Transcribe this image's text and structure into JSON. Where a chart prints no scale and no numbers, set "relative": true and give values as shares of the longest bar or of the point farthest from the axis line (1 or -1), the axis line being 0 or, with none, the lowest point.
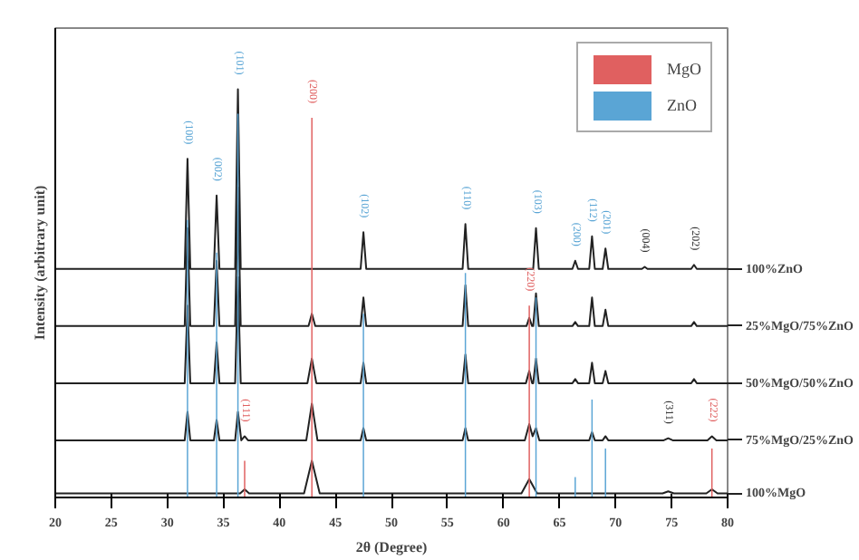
{
  "chart_data": {
    "type": "line",
    "relative": true,
    "xlabel": "2θ (Degree)",
    "ylabel": "Intensity (arbitrary unit)",
    "xlim": [
      20,
      80
    ],
    "xticks": [
      20,
      25,
      30,
      35,
      40,
      45,
      50,
      55,
      60,
      65,
      70,
      75,
      80
    ],
    "grid": false,
    "legend": "top right",
    "marker": "none",
    "line_style": "solid",
    "series": [
      {
        "name": "100%ZnO",
        "color": "#222222",
        "x": [
          20,
          31.55,
          31.8,
          32.05,
          34.15,
          34.4,
          34.65,
          36.05,
          36.3,
          36.55,
          47.25,
          47.5,
          47.75,
          56.35,
          56.6,
          56.85,
          62.65,
          62.9,
          63.15,
          66.15,
          66.4,
          66.65,
          67.65,
          67.9,
          68.15,
          68.85,
          69.1,
          69.35,
          72.35,
          72.6,
          72.85,
          76.75,
          77,
          77.25,
          80
        ],
        "values": [
          0.56,
          0.56,
          0.83,
          0.56,
          0.56,
          0.74,
          0.56,
          0.56,
          1.0,
          0.56,
          0.56,
          0.65,
          0.56,
          0.56,
          0.67,
          0.56,
          0.56,
          0.66,
          0.56,
          0.56,
          0.58,
          0.56,
          0.56,
          0.64,
          0.56,
          0.56,
          0.61,
          0.56,
          0.56,
          0.565,
          0.56,
          0.56,
          0.57,
          0.56,
          0.56
        ]
      },
      {
        "name": "25%MgO/75%ZnO",
        "color": "#222222",
        "x": [
          20,
          31.55,
          31.8,
          32.05,
          34.15,
          34.4,
          34.65,
          36.05,
          36.3,
          36.55,
          42.6,
          42.9,
          43.2,
          47.25,
          47.5,
          47.75,
          56.35,
          56.6,
          56.85,
          62.05,
          62.3,
          62.55,
          62.65,
          62.9,
          63.15,
          66.15,
          66.4,
          66.65,
          67.65,
          67.9,
          68.15,
          68.85,
          69.1,
          69.35,
          76.75,
          77,
          77.25,
          80
        ],
        "values": [
          0.42,
          0.42,
          0.66,
          0.42,
          0.42,
          0.58,
          0.42,
          0.42,
          0.76,
          0.42,
          0.42,
          0.45,
          0.42,
          0.42,
          0.49,
          0.42,
          0.42,
          0.52,
          0.42,
          0.42,
          0.44,
          0.42,
          0.42,
          0.5,
          0.42,
          0.42,
          0.43,
          0.42,
          0.42,
          0.49,
          0.42,
          0.42,
          0.46,
          0.42,
          0.42,
          0.43,
          0.42,
          0.42
        ]
      },
      {
        "name": "50%MgO/50%ZnO",
        "color": "#222222",
        "x": [
          20,
          31.55,
          31.8,
          32.05,
          34.15,
          34.4,
          34.65,
          36.05,
          36.3,
          36.55,
          42.5,
          42.9,
          43.3,
          47.25,
          47.5,
          47.75,
          56.35,
          56.6,
          56.85,
          62.0,
          62.3,
          62.55,
          62.65,
          62.9,
          63.15,
          66.15,
          66.4,
          66.65,
          67.65,
          67.9,
          68.15,
          68.85,
          69.1,
          69.35,
          76.75,
          77,
          77.25,
          80
        ],
        "values": [
          0.28,
          0.28,
          0.47,
          0.28,
          0.28,
          0.38,
          0.28,
          0.28,
          0.54,
          0.28,
          0.28,
          0.34,
          0.28,
          0.28,
          0.33,
          0.28,
          0.28,
          0.35,
          0.28,
          0.28,
          0.31,
          0.28,
          0.28,
          0.34,
          0.28,
          0.28,
          0.29,
          0.28,
          0.28,
          0.33,
          0.28,
          0.28,
          0.31,
          0.28,
          0.28,
          0.29,
          0.28,
          0.28
        ]
      },
      {
        "name": "75%MgO/25%ZnO",
        "color": "#222222",
        "x": [
          20,
          31.55,
          31.8,
          32.05,
          34.15,
          34.4,
          34.65,
          36.05,
          36.3,
          36.6,
          36.9,
          37.2,
          42.4,
          42.9,
          43.4,
          47.25,
          47.5,
          47.75,
          56.35,
          56.6,
          56.85,
          61.9,
          62.3,
          62.6,
          62.9,
          63.2,
          67.65,
          67.9,
          68.15,
          68.85,
          69.1,
          69.35,
          74.3,
          74.7,
          75.1,
          78.2,
          78.6,
          79.0,
          80
        ],
        "values": [
          0.14,
          0.14,
          0.21,
          0.14,
          0.14,
          0.19,
          0.14,
          0.14,
          0.21,
          0.14,
          0.15,
          0.14,
          0.14,
          0.23,
          0.14,
          0.14,
          0.17,
          0.14,
          0.14,
          0.17,
          0.14,
          0.14,
          0.18,
          0.15,
          0.17,
          0.14,
          0.14,
          0.16,
          0.14,
          0.14,
          0.15,
          0.14,
          0.14,
          0.145,
          0.14,
          0.14,
          0.15,
          0.14,
          0.14
        ]
      },
      {
        "name": "100%MgO",
        "color": "#222222",
        "x": [
          20,
          36.5,
          36.9,
          37.3,
          42.2,
          42.9,
          43.6,
          61.6,
          62.3,
          63.0,
          74.2,
          74.7,
          75.2,
          78.1,
          78.6,
          79.1,
          80
        ],
        "values": [
          0.01,
          0.01,
          0.02,
          0.01,
          0.01,
          0.09,
          0.01,
          0.01,
          0.045,
          0.01,
          0.01,
          0.015,
          0.01,
          0.01,
          0.02,
          0.01,
          0.01
        ]
      },
      {
        "name": "MgO",
        "type": "bar",
        "color": "#e06060",
        "x": [
          36.9,
          42.9,
          62.3,
          78.6
        ],
        "values": [
          0.09,
          0.93,
          0.47,
          0.12
        ]
      },
      {
        "name": "ZnO",
        "type": "bar",
        "color": "#5aa5d5",
        "x": [
          31.8,
          34.4,
          36.3,
          47.5,
          56.6,
          62.9,
          66.4,
          67.9,
          69.1
        ],
        "values": [
          0.68,
          0.6,
          0.94,
          0.45,
          0.55,
          0.49,
          0.05,
          0.24,
          0.12
        ]
      }
    ],
    "annotations": [
      {
        "text": "(100)",
        "x": 31.8,
        "y": 0.83
      },
      {
        "text": "(002)",
        "x": 34.4,
        "y": 0.74
      },
      {
        "text": "(101)",
        "x": 36.3,
        "y": 1.0
      },
      {
        "text": "(200)",
        "x": 42.9,
        "y": 0.93
      },
      {
        "text": "(102)",
        "x": 47.5,
        "y": 0.65
      },
      {
        "text": "(110)",
        "x": 56.6,
        "y": 0.67
      },
      {
        "text": "(103)",
        "x": 62.9,
        "y": 0.66
      },
      {
        "text": "(200)",
        "x": 66.4,
        "y": 0.58
      },
      {
        "text": "(112)",
        "x": 67.9,
        "y": 0.64
      },
      {
        "text": "(201)",
        "x": 69.1,
        "y": 0.61
      },
      {
        "text": "(004)",
        "x": 72.6,
        "y": 0.565
      },
      {
        "text": "(202)",
        "x": 77,
        "y": 0.57
      },
      {
        "text": "(220)",
        "x": 62.3,
        "y": 0.47
      },
      {
        "text": "(111)",
        "x": 36.9,
        "y": 0.15
      },
      {
        "text": "(311)",
        "x": 74.7,
        "y": 0.145
      },
      {
        "text": "(222)",
        "x": 78.6,
        "y": 0.15
      }
    ]
  }
}
